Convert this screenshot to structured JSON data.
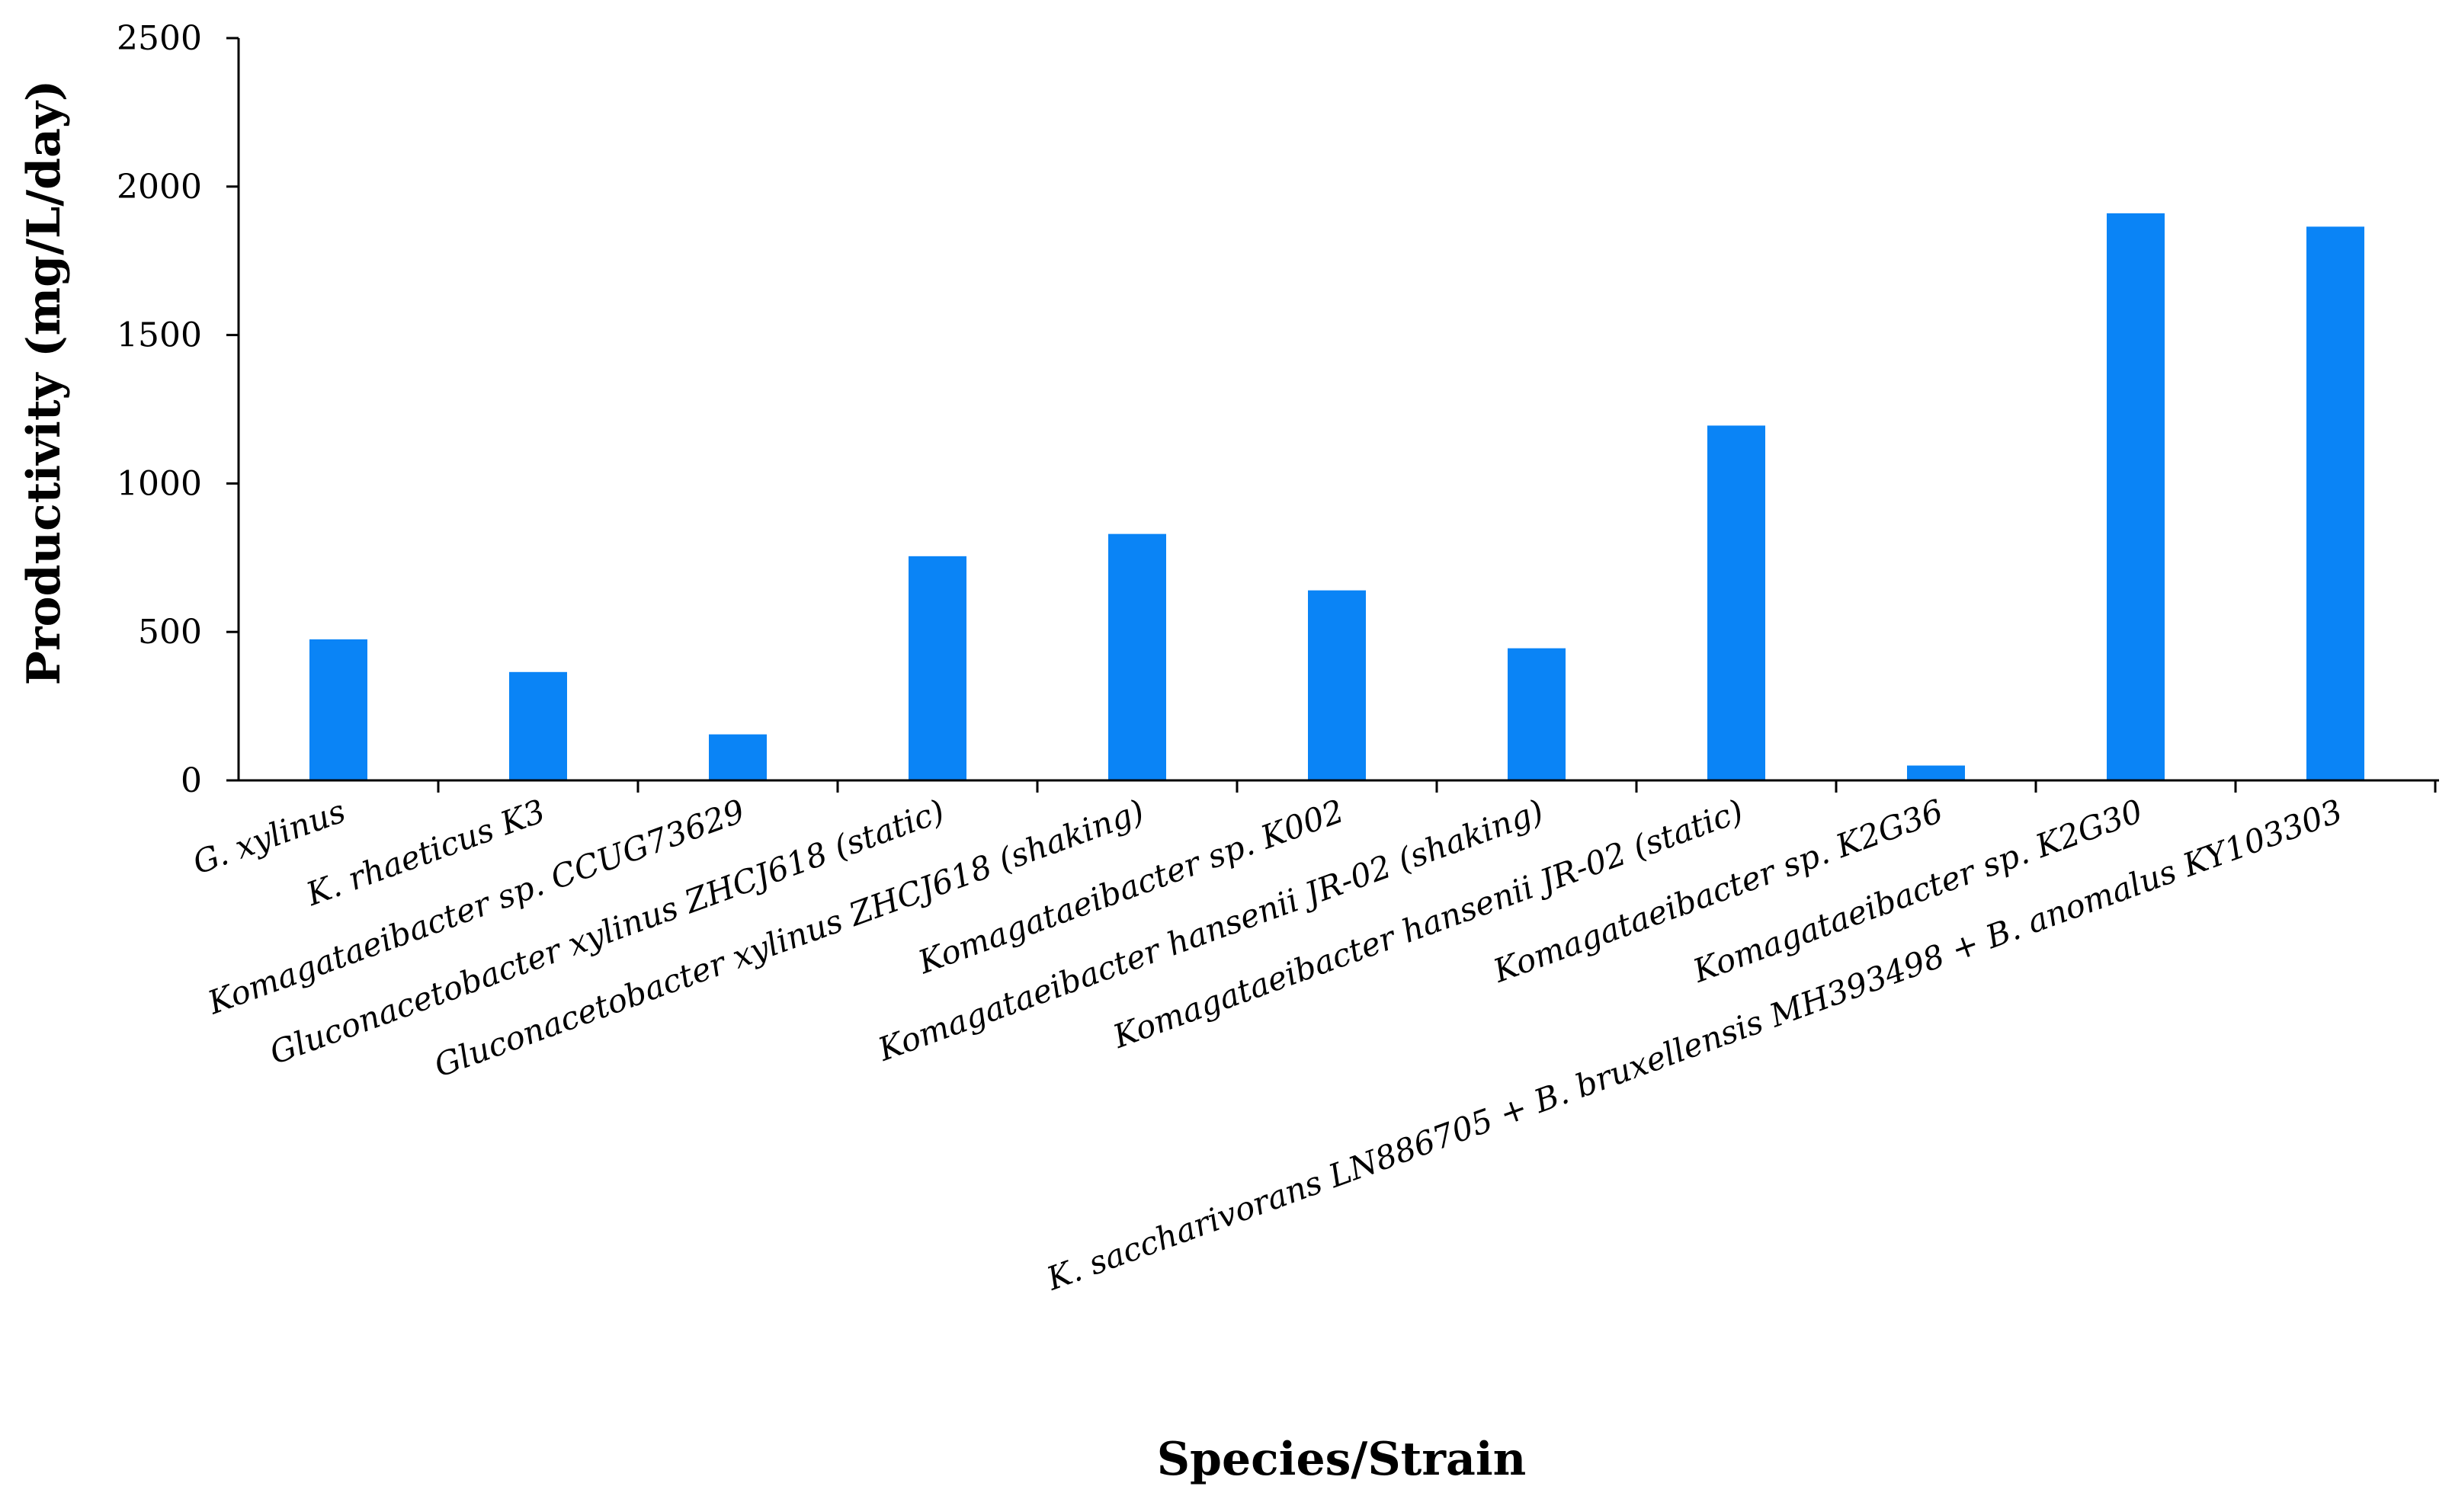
{
  "chart_data": {
    "type": "bar",
    "title": "",
    "xlabel": "Species/Strain",
    "ylabel": "Productivity (mg/L/day)",
    "ylim": [
      0,
      2500
    ],
    "yticks": [
      0,
      500,
      1000,
      1500,
      2000,
      2500
    ],
    "grid": false,
    "legend": "none",
    "bar_color": "#0A84F6",
    "categories": [
      "G. xylinus",
      "K. rhaeticus K3",
      "Komagataeibacter sp. CCUG73629",
      "Gluconacetobacter xylinus ZHCJ618 (static)",
      "Gluconacetobacter xylinus ZHCJ618 (shaking)",
      "Komagataeibacter sp. K002",
      "Komagataeibacter hansenii JR-02 (shaking)",
      "Komagataeibacter hansenii JR-02 (static)",
      "Komagataeibacter sp. K2G36",
      "Komagataeibacter sp. K2G30",
      "K. saccharivorans LN886705 + B. bruxellensis MH393498 + B. anomalus KY103303"
    ],
    "values": [
      475,
      365,
      155,
      755,
      830,
      640,
      445,
      1195,
      50,
      1910,
      1865
    ]
  }
}
